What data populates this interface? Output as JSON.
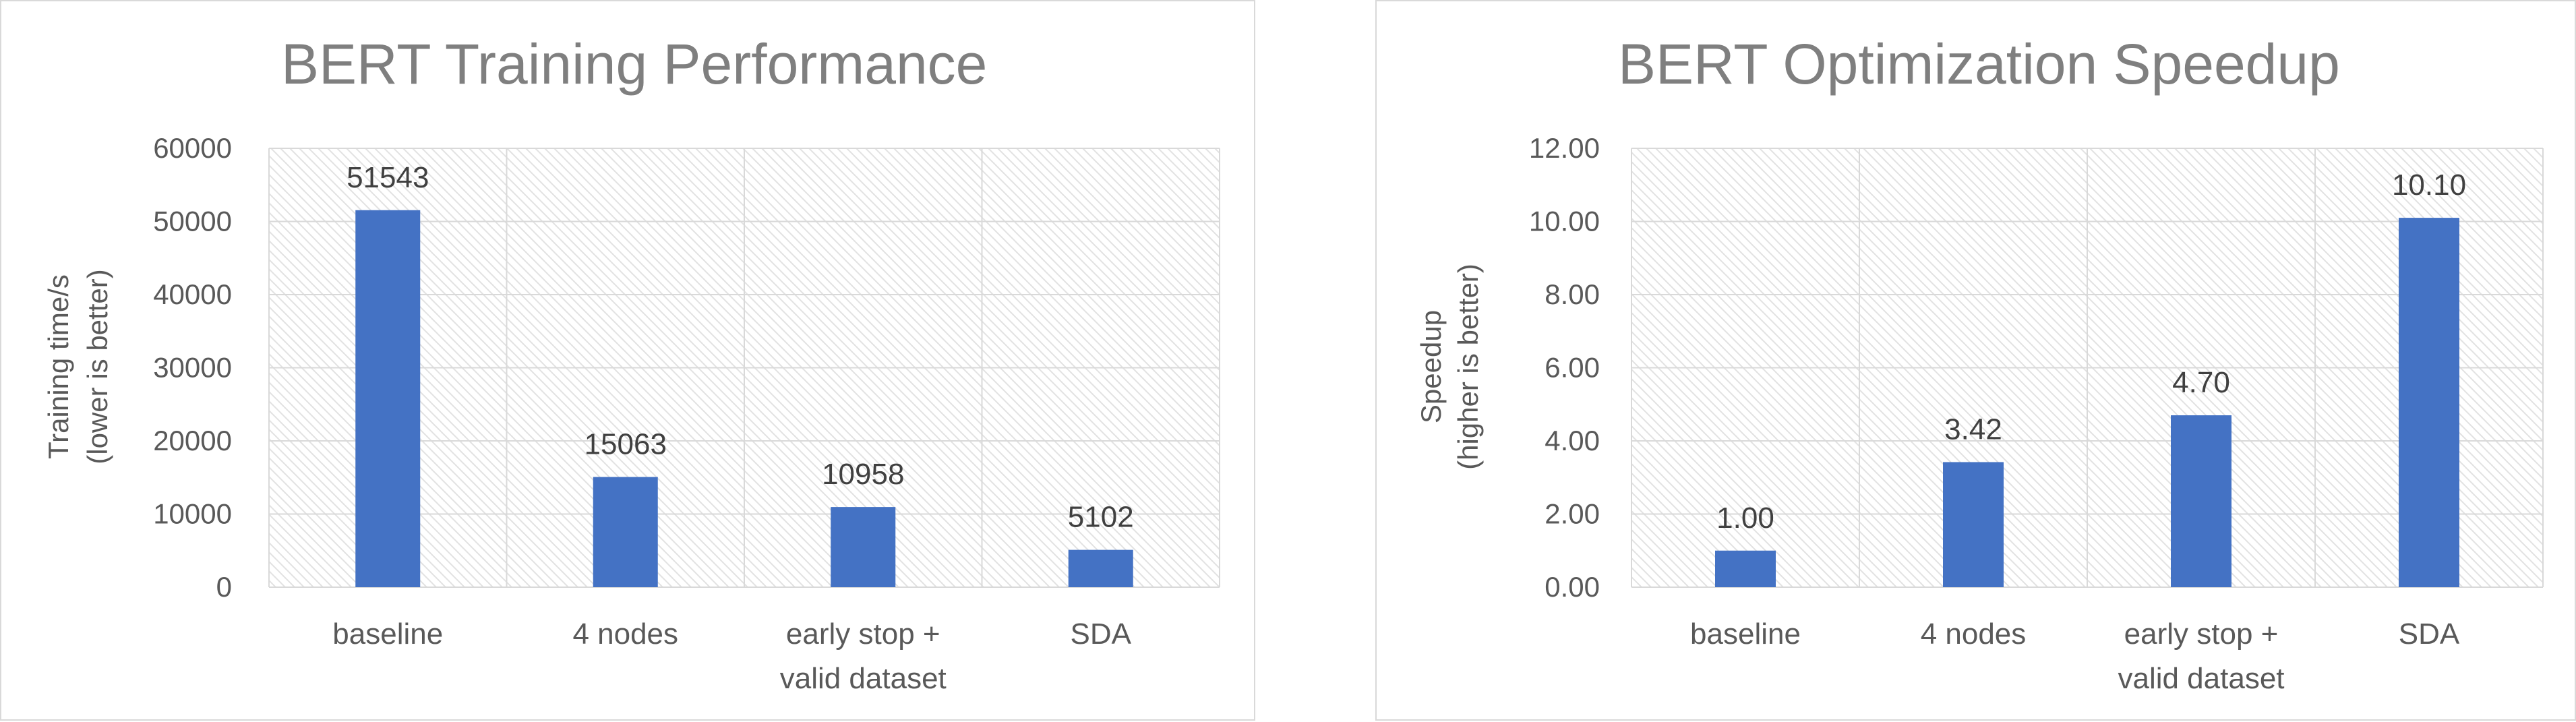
{
  "chart_data": [
    {
      "type": "bar",
      "title": "BERT Training Performance",
      "ylabel": [
        "Training time/s",
        "(lower is better)"
      ],
      "xlabel": "",
      "categories": [
        [
          "baseline"
        ],
        [
          "4 nodes"
        ],
        [
          "early stop +",
          "valid dataset"
        ],
        [
          "SDA"
        ]
      ],
      "values": [
        51543,
        15063,
        10958,
        5102
      ],
      "data_labels": [
        "51543",
        "15063",
        "10958",
        "5102"
      ],
      "ylim": [
        0,
        60000
      ],
      "yticks": [
        0,
        10000,
        20000,
        30000,
        40000,
        50000,
        60000
      ],
      "ytick_labels": [
        "0",
        "10000",
        "20000",
        "30000",
        "40000",
        "50000",
        "60000"
      ],
      "grid": true,
      "plot_background": "hatched",
      "bar_color": "#4472c4"
    },
    {
      "type": "bar",
      "title": "BERT Optimization Speedup",
      "ylabel": [
        "Speedup",
        "(higher is better)"
      ],
      "xlabel": "",
      "categories": [
        [
          "baseline"
        ],
        [
          "4 nodes"
        ],
        [
          "early stop +",
          "valid dataset"
        ],
        [
          "SDA"
        ]
      ],
      "values": [
        1.0,
        3.42,
        4.7,
        10.1
      ],
      "data_labels": [
        "1.00",
        "3.42",
        "4.70",
        "10.10"
      ],
      "ylim": [
        0,
        12
      ],
      "yticks": [
        0,
        2,
        4,
        6,
        8,
        10,
        12
      ],
      "ytick_labels": [
        "0.00",
        "2.00",
        "4.00",
        "6.00",
        "8.00",
        "10.00",
        "12.00"
      ],
      "grid": true,
      "plot_background": "hatched",
      "bar_color": "#4472c4"
    }
  ]
}
